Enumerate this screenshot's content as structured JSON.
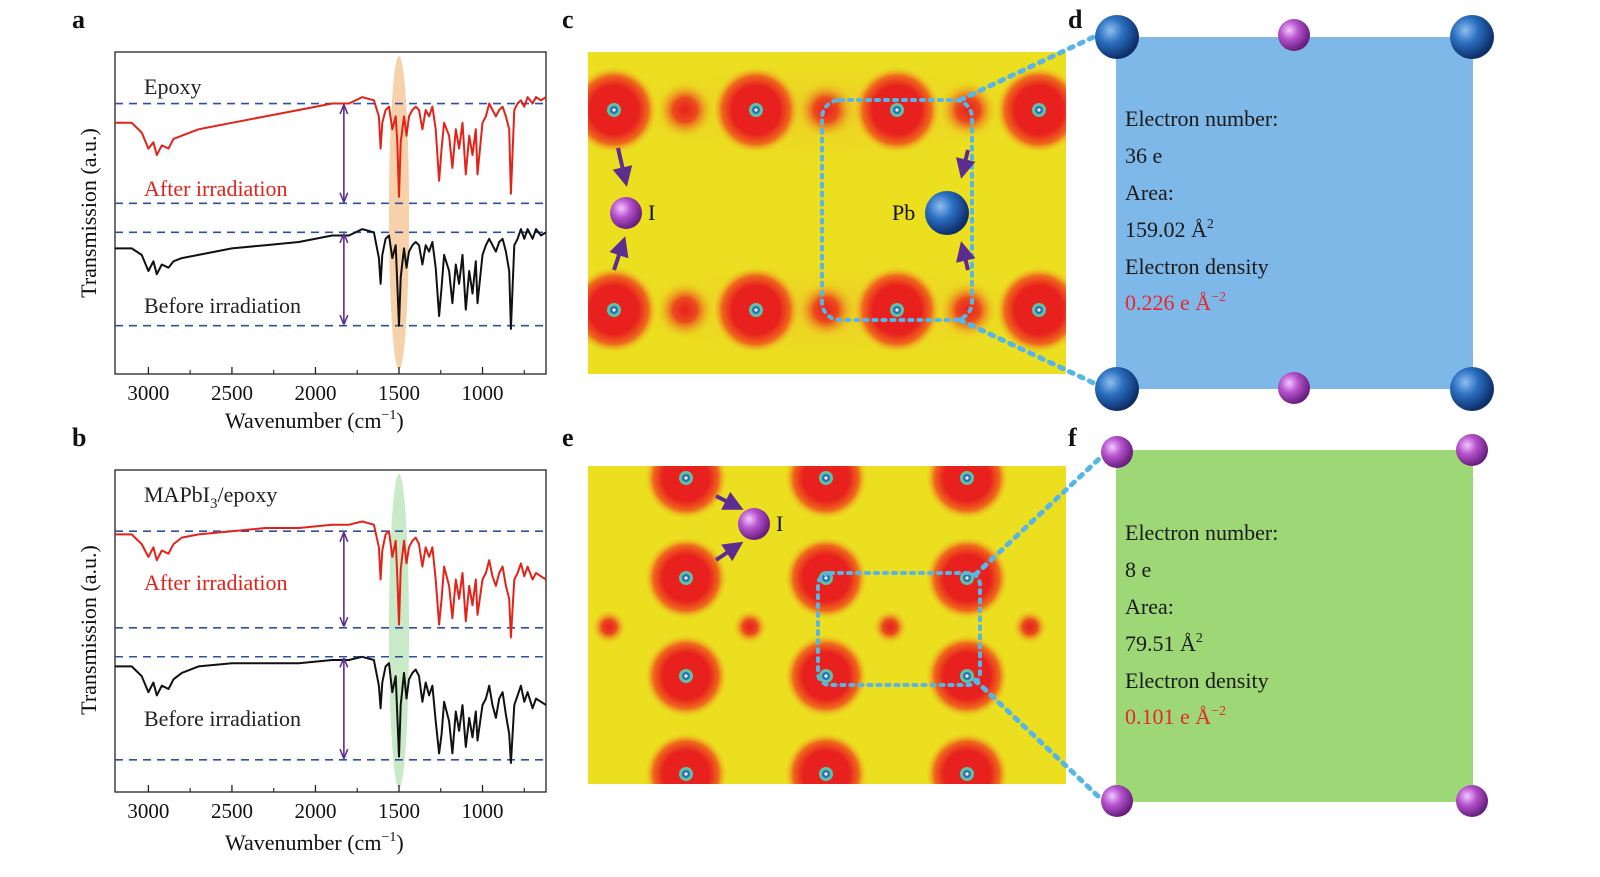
{
  "panels": {
    "a": {
      "letter": "a",
      "sample": "Epoxy",
      "after_label": "After irradiation",
      "before_label": "Before irradiation",
      "highlight_color": "#f6c99a"
    },
    "b": {
      "letter": "b",
      "sample_main": "MAPbI",
      "sample_sub": "3",
      "sample_rest": "/epoxy",
      "after_label": "After irradiation",
      "before_label": "Before irradiation",
      "highlight_color": "#bfe6bd"
    },
    "c": {
      "letter": "c",
      "atom_i": "I",
      "atom_pb": "Pb"
    },
    "d": {
      "letter": "d",
      "electron_number_label": "Electron number:",
      "electron_number_value": "36 e",
      "area_label": "Area:",
      "area_value": "159.02 Å",
      "area_sup": "2",
      "density_label": "Electron density",
      "density_value": "0.226 e Å",
      "density_sup": "−2",
      "box_color": "#7db8e8"
    },
    "e": {
      "letter": "e",
      "atom_i": "I"
    },
    "f": {
      "letter": "f",
      "electron_number_label": "Electron number:",
      "electron_number_value": "8 e",
      "area_label": "Area:",
      "area_value": "79.51 Å",
      "area_sup": "2",
      "density_label": "Electron density",
      "density_value": "0.101 e Å",
      "density_sup": "−2",
      "box_color": "#9ed775"
    }
  },
  "colors": {
    "after_curve": "#e2231a",
    "before_curve": "#111111",
    "dashed_line": "#2f4fa0",
    "arrow": "#5b2d90",
    "pb_atom": "#1f5fb0",
    "i_atom": "#b04fc6",
    "dotted_outline": "#57b6e6",
    "map_background": "#ecdf20",
    "map_peak": "#e8201e"
  },
  "chart_data": [
    {
      "type": "line",
      "panel": "a",
      "xlabel": "Wavenumber (cm",
      "xlabel_sup": "−1",
      "xlabel_close": ")",
      "ylabel": "Transmission (a.u.)",
      "xlim": [
        3200,
        620
      ],
      "x_reversed": true,
      "xticks": [
        3000,
        2500,
        2000,
        1500,
        1000
      ],
      "xtick_labels": [
        "3000",
        "2500",
        "2000",
        "1500",
        "1000"
      ],
      "ylim": [
        0,
        1
      ],
      "highlight_band": [
        1560,
        1440
      ],
      "gap_arrow_x": 1830,
      "dashed_levels": [
        0.84,
        0.53,
        0.44,
        0.15
      ],
      "series": [
        {
          "name": "After irradiation",
          "x": [
            3200,
            3100,
            3040,
            3000,
            2970,
            2950,
            2920,
            2880,
            2850,
            2800,
            2700,
            2500,
            2300,
            2100,
            1900,
            1800,
            1720,
            1650,
            1620,
            1610,
            1600,
            1580,
            1560,
            1540,
            1520,
            1510,
            1500,
            1490,
            1470,
            1455,
            1440,
            1420,
            1400,
            1380,
            1360,
            1340,
            1320,
            1300,
            1280,
            1260,
            1245,
            1230,
            1200,
            1180,
            1160,
            1140,
            1120,
            1100,
            1080,
            1060,
            1040,
            1030,
            1000,
            980,
            960,
            940,
            920,
            900,
            880,
            860,
            840,
            830,
            810,
            790,
            770,
            750,
            730,
            700,
            680,
            650,
            620
          ],
          "y": [
            0.78,
            0.78,
            0.75,
            0.7,
            0.72,
            0.68,
            0.71,
            0.7,
            0.73,
            0.74,
            0.76,
            0.78,
            0.8,
            0.82,
            0.84,
            0.84,
            0.86,
            0.85,
            0.8,
            0.7,
            0.78,
            0.82,
            0.83,
            0.76,
            0.8,
            0.72,
            0.55,
            0.72,
            0.8,
            0.74,
            0.8,
            0.82,
            0.83,
            0.82,
            0.76,
            0.82,
            0.8,
            0.83,
            0.76,
            0.6,
            0.7,
            0.78,
            0.74,
            0.64,
            0.76,
            0.7,
            0.78,
            0.62,
            0.74,
            0.68,
            0.76,
            0.62,
            0.78,
            0.8,
            0.84,
            0.82,
            0.8,
            0.82,
            0.83,
            0.8,
            0.76,
            0.56,
            0.82,
            0.84,
            0.85,
            0.83,
            0.86,
            0.84,
            0.86,
            0.85,
            0.86
          ]
        },
        {
          "name": "Before irradiation",
          "x": [
            3200,
            3100,
            3040,
            3000,
            2970,
            2950,
            2920,
            2880,
            2850,
            2800,
            2700,
            2500,
            2300,
            2100,
            1900,
            1800,
            1720,
            1650,
            1620,
            1610,
            1600,
            1580,
            1560,
            1540,
            1520,
            1510,
            1500,
            1490,
            1470,
            1455,
            1440,
            1420,
            1400,
            1380,
            1360,
            1340,
            1320,
            1300,
            1280,
            1260,
            1245,
            1230,
            1200,
            1180,
            1160,
            1140,
            1120,
            1100,
            1080,
            1060,
            1040,
            1030,
            1000,
            980,
            960,
            940,
            920,
            900,
            880,
            860,
            840,
            830,
            810,
            790,
            770,
            750,
            730,
            700,
            680,
            650,
            620
          ],
          "y": [
            0.39,
            0.39,
            0.37,
            0.32,
            0.35,
            0.31,
            0.34,
            0.33,
            0.35,
            0.36,
            0.37,
            0.39,
            0.4,
            0.41,
            0.43,
            0.43,
            0.45,
            0.44,
            0.36,
            0.28,
            0.37,
            0.42,
            0.43,
            0.36,
            0.4,
            0.28,
            0.15,
            0.3,
            0.39,
            0.33,
            0.38,
            0.4,
            0.41,
            0.4,
            0.34,
            0.4,
            0.38,
            0.41,
            0.33,
            0.18,
            0.27,
            0.37,
            0.32,
            0.22,
            0.34,
            0.28,
            0.37,
            0.2,
            0.32,
            0.25,
            0.35,
            0.22,
            0.37,
            0.4,
            0.42,
            0.4,
            0.38,
            0.41,
            0.42,
            0.38,
            0.32,
            0.14,
            0.4,
            0.42,
            0.45,
            0.42,
            0.45,
            0.42,
            0.45,
            0.43,
            0.44
          ]
        }
      ]
    },
    {
      "type": "line",
      "panel": "b",
      "xlabel": "Wavenumber (cm",
      "xlabel_sup": "−1",
      "xlabel_close": ")",
      "ylabel": "Transmission (a.u.)",
      "xlim": [
        3200,
        620
      ],
      "x_reversed": true,
      "xticks": [
        3000,
        2500,
        2000,
        1500,
        1000
      ],
      "xtick_labels": [
        "3000",
        "2500",
        "2000",
        "1500",
        "1000"
      ],
      "ylim": [
        0,
        1
      ],
      "highlight_band": [
        1560,
        1440
      ],
      "gap_arrow_x": 1830,
      "dashed_levels": [
        0.81,
        0.51,
        0.42,
        0.1
      ],
      "series": [
        {
          "name": "After irradiation",
          "x": [
            3200,
            3100,
            3040,
            3000,
            2970,
            2950,
            2920,
            2880,
            2850,
            2800,
            2700,
            2500,
            2300,
            2100,
            1900,
            1800,
            1720,
            1650,
            1620,
            1610,
            1600,
            1580,
            1560,
            1540,
            1520,
            1510,
            1500,
            1490,
            1470,
            1455,
            1440,
            1420,
            1400,
            1380,
            1360,
            1340,
            1320,
            1300,
            1280,
            1260,
            1245,
            1230,
            1200,
            1180,
            1160,
            1140,
            1120,
            1100,
            1080,
            1060,
            1040,
            1030,
            1000,
            980,
            960,
            940,
            920,
            900,
            880,
            860,
            840,
            830,
            810,
            790,
            770,
            750,
            730,
            700,
            680,
            650,
            620
          ],
          "y": [
            0.8,
            0.8,
            0.77,
            0.73,
            0.76,
            0.72,
            0.75,
            0.74,
            0.77,
            0.79,
            0.8,
            0.81,
            0.82,
            0.82,
            0.83,
            0.83,
            0.84,
            0.83,
            0.76,
            0.66,
            0.75,
            0.8,
            0.81,
            0.73,
            0.78,
            0.67,
            0.52,
            0.69,
            0.78,
            0.71,
            0.76,
            0.78,
            0.79,
            0.77,
            0.7,
            0.76,
            0.73,
            0.76,
            0.66,
            0.52,
            0.6,
            0.7,
            0.64,
            0.54,
            0.66,
            0.6,
            0.68,
            0.53,
            0.64,
            0.58,
            0.66,
            0.55,
            0.66,
            0.68,
            0.72,
            0.67,
            0.64,
            0.68,
            0.7,
            0.64,
            0.6,
            0.48,
            0.66,
            0.68,
            0.71,
            0.67,
            0.7,
            0.66,
            0.68,
            0.67,
            0.66
          ]
        },
        {
          "name": "Before irradiation",
          "x": [
            3200,
            3100,
            3040,
            3000,
            2970,
            2950,
            2920,
            2880,
            2850,
            2800,
            2700,
            2500,
            2300,
            2100,
            1900,
            1800,
            1720,
            1650,
            1620,
            1610,
            1600,
            1580,
            1560,
            1540,
            1520,
            1510,
            1500,
            1490,
            1470,
            1455,
            1440,
            1420,
            1400,
            1380,
            1360,
            1340,
            1320,
            1300,
            1280,
            1260,
            1245,
            1230,
            1200,
            1180,
            1160,
            1140,
            1120,
            1100,
            1080,
            1060,
            1040,
            1030,
            1000,
            980,
            960,
            940,
            920,
            900,
            880,
            860,
            840,
            830,
            810,
            790,
            770,
            750,
            730,
            700,
            680,
            650,
            620
          ],
          "y": [
            0.39,
            0.39,
            0.36,
            0.31,
            0.34,
            0.3,
            0.33,
            0.32,
            0.35,
            0.37,
            0.39,
            0.4,
            0.4,
            0.4,
            0.41,
            0.41,
            0.42,
            0.41,
            0.33,
            0.26,
            0.34,
            0.39,
            0.4,
            0.31,
            0.36,
            0.24,
            0.11,
            0.27,
            0.37,
            0.29,
            0.35,
            0.37,
            0.38,
            0.36,
            0.28,
            0.34,
            0.3,
            0.33,
            0.22,
            0.12,
            0.18,
            0.28,
            0.22,
            0.12,
            0.25,
            0.19,
            0.27,
            0.14,
            0.23,
            0.17,
            0.25,
            0.16,
            0.27,
            0.29,
            0.33,
            0.27,
            0.23,
            0.29,
            0.31,
            0.24,
            0.18,
            0.09,
            0.27,
            0.3,
            0.33,
            0.28,
            0.31,
            0.26,
            0.29,
            0.28,
            0.27
          ]
        }
      ]
    }
  ]
}
